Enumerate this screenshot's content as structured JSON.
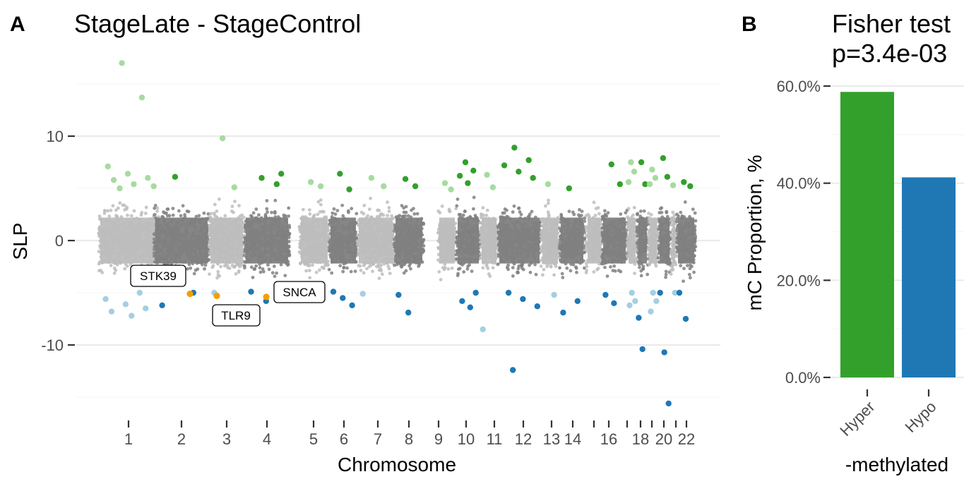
{
  "panel_a": {
    "letter": "A",
    "chart_data": {
      "type": "scatter",
      "title": "StageLate - StageControl",
      "xlabel": "Chromosome",
      "ylabel": "SLP",
      "ylim": [
        -16,
        16
      ],
      "y_ticks": [
        10,
        0,
        -10
      ],
      "y_tick_labels": [
        "10",
        "0",
        "-10"
      ],
      "grid": true,
      "chromosomes": [
        "1",
        "2",
        "3",
        "4",
        "5",
        "6",
        "7",
        "8",
        "9",
        "10",
        "11",
        "12",
        "13",
        "14",
        "15",
        "16",
        "17",
        "18",
        "19",
        "20",
        "21",
        "22"
      ],
      "x_tick_labels": [
        "1",
        "2",
        "3",
        "4",
        "5",
        "6",
        "7",
        "8",
        "9",
        "10",
        "11",
        "12",
        "13",
        "14",
        "",
        "16",
        "",
        "18",
        "",
        "20",
        "",
        "22"
      ],
      "colors": {
        "odd_chromosome": "#bdbdbd",
        "even_chromosome": "#808080",
        "hyper_significant_light": "#a6dba0",
        "hyper_significant_dark": "#33a02c",
        "hypo_significant_light": "#a6cee3",
        "hypo_significant_dark": "#1f78b4",
        "annotated_gene": "#f59f00"
      },
      "annotations": [
        {
          "label": "STK39",
          "chromosome": "2",
          "y": -5.1
        },
        {
          "label": "TLR9",
          "chromosome": "3",
          "y": -5.3
        },
        {
          "label": "SNCA",
          "chromosome": "4",
          "y": -5.4
        }
      ],
      "significant_points": [
        {
          "chromosome": "1",
          "y": 17.0
        },
        {
          "chromosome": "1",
          "y": 13.7
        },
        {
          "chromosome": "1",
          "y": 7.1
        },
        {
          "chromosome": "1",
          "y": 6.4
        },
        {
          "chromosome": "1",
          "y": 6.0
        },
        {
          "chromosome": "1",
          "y": 5.8
        },
        {
          "chromosome": "1",
          "y": 5.4
        },
        {
          "chromosome": "1",
          "y": 5.2
        },
        {
          "chromosome": "1",
          "y": 5.0
        },
        {
          "chromosome": "1",
          "y": -5.0
        },
        {
          "chromosome": "1",
          "y": -5.6
        },
        {
          "chromosome": "1",
          "y": -6.1
        },
        {
          "chromosome": "1",
          "y": -6.5
        },
        {
          "chromosome": "1",
          "y": -6.8
        },
        {
          "chromosome": "1",
          "y": -7.2
        },
        {
          "chromosome": "2",
          "y": 6.1
        },
        {
          "chromosome": "2",
          "y": -5.0
        },
        {
          "chromosome": "2",
          "y": -6.2
        },
        {
          "chromosome": "3",
          "y": 9.8
        },
        {
          "chromosome": "3",
          "y": 5.1
        },
        {
          "chromosome": "3",
          "y": -5.0
        },
        {
          "chromosome": "4",
          "y": 6.0
        },
        {
          "chromosome": "4",
          "y": 5.4
        },
        {
          "chromosome": "4",
          "y": -4.9
        },
        {
          "chromosome": "4",
          "y": -5.8
        },
        {
          "chromosome": "4",
          "y": 6.4
        },
        {
          "chromosome": "4",
          "y": -7.5
        },
        {
          "chromosome": "5",
          "y": 5.6
        },
        {
          "chromosome": "5",
          "y": 5.2
        },
        {
          "chromosome": "6",
          "y": 6.4
        },
        {
          "chromosome": "6",
          "y": 4.9
        },
        {
          "chromosome": "6",
          "y": -4.9
        },
        {
          "chromosome": "6",
          "y": -5.5
        },
        {
          "chromosome": "6",
          "y": -6.2
        },
        {
          "chromosome": "7",
          "y": 6.0
        },
        {
          "chromosome": "7",
          "y": 5.2
        },
        {
          "chromosome": "7",
          "y": -5.1
        },
        {
          "chromosome": "8",
          "y": 5.9
        },
        {
          "chromosome": "8",
          "y": 5.2
        },
        {
          "chromosome": "8",
          "y": -5.2
        },
        {
          "chromosome": "8",
          "y": -6.9
        },
        {
          "chromosome": "9",
          "y": 5.5
        },
        {
          "chromosome": "9",
          "y": 4.9
        },
        {
          "chromosome": "10",
          "y": 7.5
        },
        {
          "chromosome": "10",
          "y": 6.7
        },
        {
          "chromosome": "10",
          "y": 6.2
        },
        {
          "chromosome": "10",
          "y": 5.5
        },
        {
          "chromosome": "10",
          "y": -5.0
        },
        {
          "chromosome": "10",
          "y": -5.8
        },
        {
          "chromosome": "10",
          "y": -6.4
        },
        {
          "chromosome": "11",
          "y": 6.3
        },
        {
          "chromosome": "11",
          "y": 5.1
        },
        {
          "chromosome": "11",
          "y": -8.5
        },
        {
          "chromosome": "12",
          "y": 8.9
        },
        {
          "chromosome": "12",
          "y": 7.7
        },
        {
          "chromosome": "12",
          "y": 7.2
        },
        {
          "chromosome": "12",
          "y": 6.6
        },
        {
          "chromosome": "12",
          "y": 6.0
        },
        {
          "chromosome": "12",
          "y": -5.0
        },
        {
          "chromosome": "12",
          "y": -5.6
        },
        {
          "chromosome": "12",
          "y": -6.3
        },
        {
          "chromosome": "12",
          "y": -12.4
        },
        {
          "chromosome": "13",
          "y": 5.4
        },
        {
          "chromosome": "13",
          "y": -5.2
        },
        {
          "chromosome": "14",
          "y": 5.0
        },
        {
          "chromosome": "14",
          "y": -5.8
        },
        {
          "chromosome": "14",
          "y": -6.9
        },
        {
          "chromosome": "16",
          "y": 7.3
        },
        {
          "chromosome": "16",
          "y": 5.4
        },
        {
          "chromosome": "16",
          "y": -5.2
        },
        {
          "chromosome": "16",
          "y": -6.0
        },
        {
          "chromosome": "17",
          "y": 7.5
        },
        {
          "chromosome": "17",
          "y": 6.6
        },
        {
          "chromosome": "17",
          "y": 5.6
        },
        {
          "chromosome": "17",
          "y": -5.0
        },
        {
          "chromosome": "17",
          "y": -5.8
        },
        {
          "chromosome": "17",
          "y": -6.2
        },
        {
          "chromosome": "18",
          "y": 7.5
        },
        {
          "chromosome": "18",
          "y": 5.4
        },
        {
          "chromosome": "18",
          "y": -7.4
        },
        {
          "chromosome": "18",
          "y": -10.4
        },
        {
          "chromosome": "19",
          "y": 6.8
        },
        {
          "chromosome": "19",
          "y": 6.0
        },
        {
          "chromosome": "19",
          "y": 5.4
        },
        {
          "chromosome": "19",
          "y": -5.0
        },
        {
          "chromosome": "19",
          "y": -5.8
        },
        {
          "chromosome": "19",
          "y": -6.8
        },
        {
          "chromosome": "20",
          "y": 7.9
        },
        {
          "chromosome": "20",
          "y": 6.1
        },
        {
          "chromosome": "20",
          "y": -5.0
        },
        {
          "chromosome": "20",
          "y": -10.7
        },
        {
          "chromosome": "20",
          "y": -15.6
        },
        {
          "chromosome": "21",
          "y": 5.3
        },
        {
          "chromosome": "21",
          "y": -5.0
        },
        {
          "chromosome": "22",
          "y": 5.6
        },
        {
          "chromosome": "22",
          "y": 5.2
        },
        {
          "chromosome": "22",
          "y": -5.0
        },
        {
          "chromosome": "22",
          "y": -7.5
        }
      ]
    }
  },
  "panel_b": {
    "letter": "B",
    "chart_data": {
      "type": "bar",
      "title": "Fisher test\np=3.4e-03",
      "title_lines": [
        "Fisher test",
        "p=3.4e-03"
      ],
      "xlabel": "-methylated",
      "ylabel": "mC Proportion, %",
      "categories": [
        "Hyper",
        "Hypo"
      ],
      "values": [
        0.588,
        0.412
      ],
      "ylim": [
        0,
        0.6
      ],
      "y_ticks": [
        0,
        0.2,
        0.4,
        0.6
      ],
      "y_tick_labels": [
        "0.0%",
        "20.0%",
        "40.0%",
        "60.0%"
      ],
      "colors": {
        "Hyper": "#33a02c",
        "Hypo": "#1f78b4"
      },
      "grid": true
    }
  }
}
